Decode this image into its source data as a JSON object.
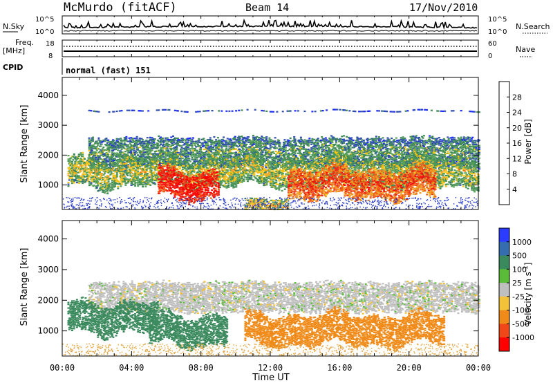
{
  "header": {
    "station": "McMurdo (fitACF)",
    "beam": "Beam 14",
    "date": "17/Nov/2010"
  },
  "aux_panels": {
    "nsky_label": "N.Sky",
    "nsearch_label": "N.Search",
    "noise_ticks_left": [
      "10^5",
      "10^0"
    ],
    "noise_ticks_right": [
      "10^5",
      "10^0"
    ],
    "freq_label_top": "Freq.",
    "freq_label_bottom": "[MHz]",
    "freq_ticks": [
      "18",
      "8"
    ],
    "nave_label": "Nave",
    "nave_ticks": [
      "60",
      "0"
    ],
    "cpid_label": "CPID",
    "cpid_value": "normal (fast) 151"
  },
  "colors": {
    "power_scale": [
      "#1c2cff",
      "#2f4fae",
      "#3f8a56",
      "#58a058",
      "#f2c218",
      "#f09c20",
      "#f06018",
      "#ec2814",
      "#ff0000"
    ],
    "velocity_scale": [
      "#2c3cff",
      "#356dae",
      "#3b8a5e",
      "#5bbc3a",
      "#bfbfbf",
      "#f2c238",
      "#f08a18",
      "#f04818",
      "#ff0000"
    ]
  },
  "chart_data": [
    {
      "type": "heatmap",
      "name": "Power",
      "ylabel": "Slant Range [km]",
      "yticks": [
        1000,
        2000,
        3000,
        4000
      ],
      "ylim": [
        180,
        4600
      ],
      "xticks": [
        "00:00",
        "04:00",
        "08:00",
        "12:00",
        "16:00",
        "20:00",
        "00:00"
      ],
      "xlim_hours": [
        0,
        24
      ],
      "colorbar": {
        "label": "Power [dB]",
        "ticks": [
          "4",
          "8",
          "12",
          "16",
          "20",
          "24",
          "28"
        ],
        "range": [
          0,
          30
        ]
      },
      "bands": [
        {
          "range_km": 2100,
          "hours": [
            1.5,
            24
          ],
          "level_db": 6
        },
        {
          "range_km": 1300,
          "hours": [
            0.3,
            24
          ],
          "level_db": 10
        },
        {
          "range_km": 900,
          "hours": [
            5.5,
            9.0
          ],
          "level_db": 24
        },
        {
          "range_km": 900,
          "hours": [
            13.0,
            21.5
          ],
          "level_db": 20
        },
        {
          "range_km": 300,
          "hours": [
            10.5,
            13.0
          ],
          "level_db": 12
        },
        {
          "range_km": 3500,
          "hours": [
            1.5,
            24
          ],
          "level_db": 4
        }
      ]
    },
    {
      "type": "heatmap",
      "name": "Velocity",
      "ylabel": "Slant Range [km]",
      "yticks": [
        1000,
        2000,
        3000,
        4000
      ],
      "ylim": [
        180,
        4600
      ],
      "xticks": [
        "00:00",
        "04:00",
        "08:00",
        "12:00",
        "16:00",
        "20:00",
        "00:00"
      ],
      "xlabel": "Time UT",
      "xlim_hours": [
        0,
        24
      ],
      "colorbar": {
        "label": "Velocity [m s^-1]",
        "ticks": [
          "1000",
          "500",
          "100",
          "25",
          "-25",
          "-100",
          "-500",
          "-1000"
        ],
        "range": [
          -1200,
          1200
        ]
      },
      "bands": [
        {
          "range_km": 2100,
          "hours": [
            1.5,
            24
          ],
          "level_ms": 0
        },
        {
          "range_km": 1300,
          "hours": [
            0.3,
            5.5
          ],
          "level_ms": 150
        },
        {
          "range_km": 900,
          "hours": [
            5.0,
            9.5
          ],
          "level_ms": 400
        },
        {
          "range_km": 900,
          "hours": [
            10.5,
            19.5
          ],
          "level_ms": -150
        },
        {
          "range_km": 900,
          "hours": [
            19.5,
            22
          ],
          "level_ms": -400
        }
      ]
    }
  ]
}
